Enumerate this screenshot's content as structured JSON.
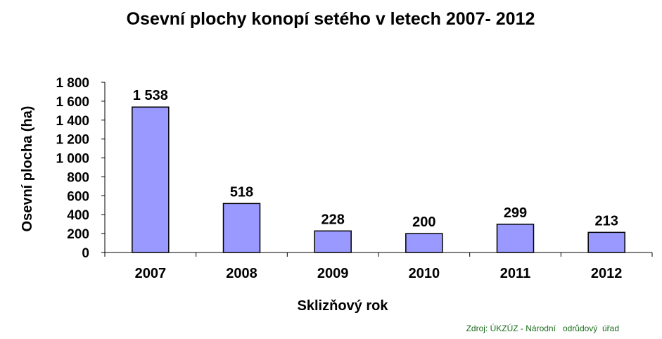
{
  "chart_data": {
    "type": "bar",
    "title": "Osevní plochy konopí setého v letech 2007- 2012",
    "xlabel": "Sklizňový rok",
    "ylabel": "Osevní plocha (ha)",
    "categories": [
      "2007",
      "2008",
      "2009",
      "2010",
      "2011",
      "2012"
    ],
    "values": [
      1538,
      518,
      228,
      200,
      299,
      213
    ],
    "data_labels": [
      "1 538",
      "518",
      "228",
      "200",
      "299",
      "213"
    ],
    "ylim": [
      0,
      1800
    ],
    "yticks": [
      0,
      200,
      400,
      600,
      800,
      1000,
      1200,
      1400,
      1600,
      1800
    ],
    "ytick_labels": [
      "0",
      "200",
      "400",
      "600",
      "800",
      "1 000",
      "1 200",
      "1 400",
      "1 600",
      "1 800"
    ],
    "grid": false,
    "legend": "none",
    "bar_color": "#9999ff",
    "bar_border_color": "#000000"
  },
  "source": "Zdroj: ÚKZÚZ - Národní   odrůdový  úřad"
}
